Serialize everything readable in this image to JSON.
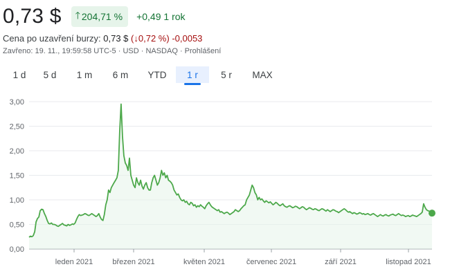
{
  "quote": {
    "price": "0,73 $",
    "change_pct": "204,71 %",
    "change_abs": "+0,49",
    "period": "1 rok",
    "close_label": "Cena po uzavření burzy:",
    "close_price": "0,73 $",
    "close_change_pct": "(↓0,72 %)",
    "close_change_abs": "-0,0053",
    "meta": "Zavřeno: 19. 11., 19:59:58 UTC-5 · USD · NASDAQ · Prohlášení"
  },
  "tabs": [
    {
      "label": "1 d"
    },
    {
      "label": "5 d"
    },
    {
      "label": "1 m"
    },
    {
      "label": "6 m"
    },
    {
      "label": "YTD"
    },
    {
      "label": "1 r",
      "active": true
    },
    {
      "label": "5 r"
    },
    {
      "label": "MAX"
    }
  ],
  "colors": {
    "line": "#4ca84a",
    "fill": "#e6f4ea",
    "up": "#137333",
    "down": "#a50e0e",
    "accent": "#1a73e8"
  },
  "chart_data": {
    "type": "area",
    "ylim": [
      0,
      3
    ],
    "yticks": [
      "3,00",
      "2,50",
      "2,00",
      "1,50",
      "1,00",
      "0,50",
      "0,00"
    ],
    "xticks": [
      "leden 2021",
      "březen 2021",
      "květen 2021",
      "červenec 2021",
      "září 2021",
      "listopad 2021"
    ],
    "series": [
      {
        "values": [
          0.24,
          0.26,
          0.25,
          0.27,
          0.35,
          0.55,
          0.62,
          0.65,
          0.78,
          0.81,
          0.8,
          0.72,
          0.66,
          0.58,
          0.52,
          0.51,
          0.53,
          0.5,
          0.5,
          0.49,
          0.47,
          0.46,
          0.48,
          0.5,
          0.52,
          0.49,
          0.48,
          0.47,
          0.5,
          0.48,
          0.49,
          0.51,
          0.5,
          0.53,
          0.6,
          0.66,
          0.7,
          0.68,
          0.69,
          0.7,
          0.72,
          0.71,
          0.69,
          0.68,
          0.7,
          0.72,
          0.7,
          0.68,
          0.66,
          0.68,
          0.72,
          0.65,
          0.6,
          0.58,
          0.7,
          0.9,
          1.0,
          1.2,
          1.15,
          1.25,
          1.3,
          1.35,
          1.4,
          1.45,
          1.6,
          2.4,
          2.95,
          2.3,
          1.9,
          1.75,
          1.7,
          1.6,
          1.85,
          1.5,
          1.4,
          1.3,
          1.25,
          1.45,
          1.35,
          1.3,
          1.4,
          1.28,
          1.22,
          1.3,
          1.35,
          1.25,
          1.2,
          1.2,
          1.35,
          1.45,
          1.5,
          1.4,
          1.3,
          1.35,
          1.45,
          1.6,
          1.5,
          1.55,
          1.45,
          1.5,
          1.4,
          1.38,
          1.35,
          1.3,
          1.2,
          1.15,
          1.1,
          1.12,
          1.05,
          1.0,
          0.98,
          1.0,
          0.95,
          0.97,
          0.92,
          0.9,
          0.95,
          0.93,
          0.88,
          0.9,
          0.85,
          0.88,
          0.86,
          0.9,
          0.87,
          0.85,
          0.82,
          0.88,
          0.92,
          0.95,
          0.9,
          0.86,
          0.84,
          0.82,
          0.8,
          0.78,
          0.8,
          0.75,
          0.76,
          0.74,
          0.72,
          0.74,
          0.75,
          0.73,
          0.7,
          0.72,
          0.74,
          0.76,
          0.8,
          0.78,
          0.76,
          0.78,
          0.82,
          0.85,
          0.88,
          0.9,
          1.0,
          1.05,
          1.1,
          1.2,
          1.3,
          1.25,
          1.15,
          1.1,
          1.0,
          1.05,
          1.0,
          1.02,
          0.98,
          0.95,
          0.98,
          0.96,
          0.94,
          0.96,
          0.93,
          0.9,
          0.92,
          0.95,
          0.93,
          0.9,
          0.88,
          0.9,
          0.92,
          0.88,
          0.86,
          0.85,
          0.87,
          0.88,
          0.86,
          0.84,
          0.85,
          0.87,
          0.86,
          0.84,
          0.82,
          0.84,
          0.86,
          0.85,
          0.82,
          0.8,
          0.82,
          0.84,
          0.83,
          0.81,
          0.8,
          0.82,
          0.81,
          0.79,
          0.78,
          0.8,
          0.82,
          0.81,
          0.79,
          0.77,
          0.8,
          0.78,
          0.76,
          0.78,
          0.8,
          0.79,
          0.77,
          0.76,
          0.74,
          0.76,
          0.78,
          0.8,
          0.82,
          0.8,
          0.77,
          0.75,
          0.76,
          0.74,
          0.72,
          0.74,
          0.73,
          0.71,
          0.72,
          0.74,
          0.73,
          0.71,
          0.72,
          0.7,
          0.71,
          0.72,
          0.7,
          0.69,
          0.71,
          0.72,
          0.7,
          0.68,
          0.66,
          0.68,
          0.7,
          0.68,
          0.67,
          0.69,
          0.7,
          0.68,
          0.67,
          0.69,
          0.7,
          0.71,
          0.69,
          0.68,
          0.7,
          0.72,
          0.7,
          0.68,
          0.69,
          0.68,
          0.66,
          0.67,
          0.68,
          0.66,
          0.67,
          0.69,
          0.68,
          0.67,
          0.66,
          0.68,
          0.7,
          0.72,
          0.75,
          0.92,
          0.85,
          0.8,
          0.78,
          0.77,
          0.75,
          0.73
        ]
      }
    ],
    "last_value": 0.73
  }
}
